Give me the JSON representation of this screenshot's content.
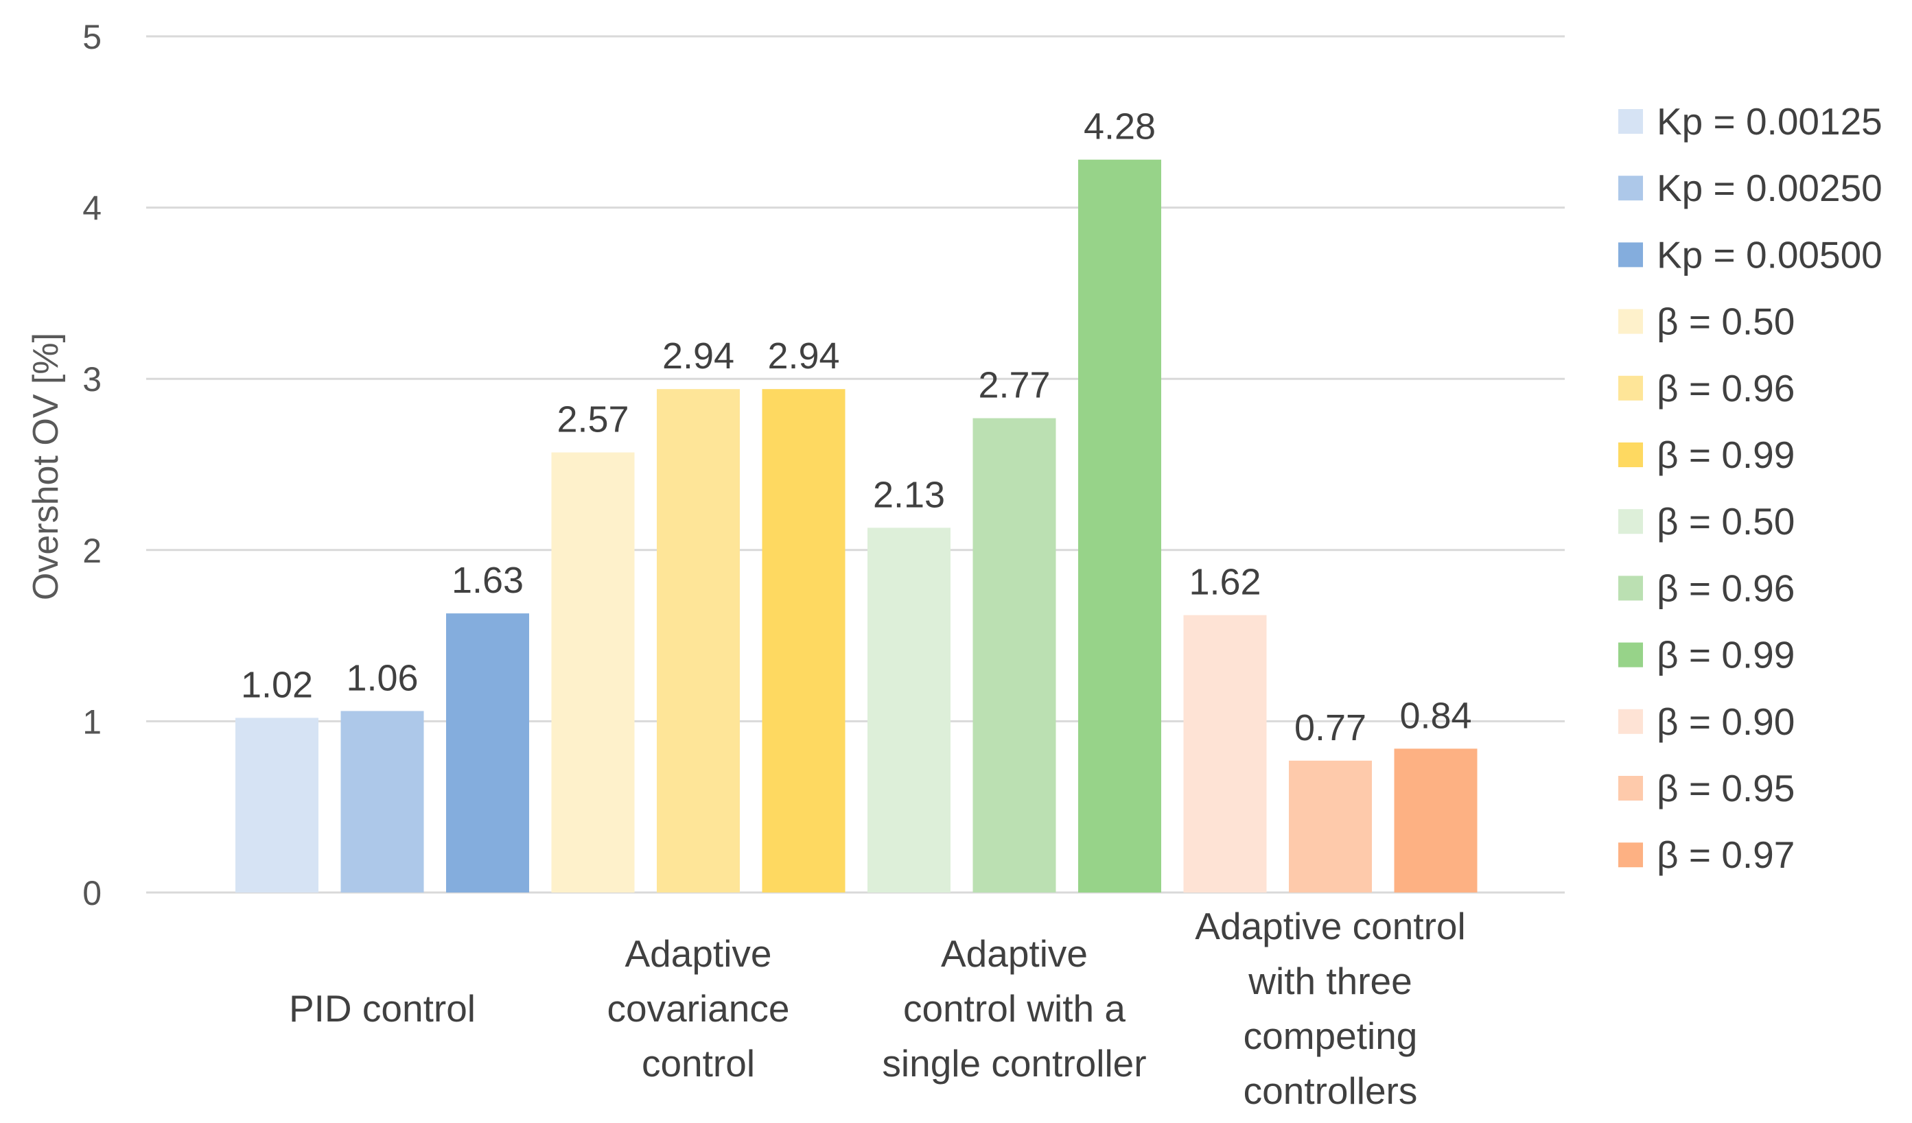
{
  "chart_data": {
    "type": "bar",
    "title": "",
    "ylabel": "Overshot OV [%]",
    "xlabel": "",
    "ylim": [
      0,
      5
    ],
    "yticks": [
      "0",
      "1",
      "2",
      "3",
      "4",
      "5"
    ],
    "grid": true,
    "legend_position": "right",
    "groups": [
      {
        "label": [
          "PID control"
        ],
        "bars": [
          {
            "series": "Kp = 0.00125",
            "value": 1.02,
            "label": "1.02",
            "color": "#d6e3f4"
          },
          {
            "series": "Kp = 0.00250",
            "value": 1.06,
            "label": "1.06",
            "color": "#adc8e9"
          },
          {
            "series": "Kp = 0.00500",
            "value": 1.63,
            "label": "1.63",
            "color": "#84addd"
          }
        ]
      },
      {
        "label": [
          "Adaptive",
          "covariance",
          "control"
        ],
        "bars": [
          {
            "series": "β = 0.50",
            "value": 2.57,
            "label": "2.57",
            "color": "#fef1cb"
          },
          {
            "series": "β = 0.96",
            "value": 2.94,
            "label": "2.94",
            "color": "#fee598"
          },
          {
            "series": "β = 0.99",
            "value": 2.94,
            "label": "2.94",
            "color": "#fed961"
          }
        ]
      },
      {
        "label": [
          "Adaptive",
          "control with a",
          "single controller"
        ],
        "bars": [
          {
            "series": "β = 0.50",
            "value": 2.13,
            "label": "2.13",
            "color": "#ddefd9"
          },
          {
            "series": "β = 0.96",
            "value": 2.77,
            "label": "2.77",
            "color": "#bbe0b2"
          },
          {
            "series": "β = 0.99",
            "value": 4.28,
            "label": "4.28",
            "color": "#97d389"
          }
        ]
      },
      {
        "label": [
          "Adaptive control",
          "with three",
          "competing",
          "controllers"
        ],
        "bars": [
          {
            "series": "β = 0.90",
            "value": 1.62,
            "label": "1.62",
            "color": "#fee3d5"
          },
          {
            "series": "β = 0.95",
            "value": 0.77,
            "label": "0.77",
            "color": "#fecaab"
          },
          {
            "series": "β = 0.97",
            "value": 0.84,
            "label": "0.84",
            "color": "#fdb183"
          }
        ]
      }
    ],
    "legend": [
      {
        "label": "Kp = 0.00125",
        "color": "#d6e3f4"
      },
      {
        "label": "Kp = 0.00250",
        "color": "#adc8e9"
      },
      {
        "label": "Kp = 0.00500",
        "color": "#84addd"
      },
      {
        "label": "β = 0.50",
        "color": "#fef1cb"
      },
      {
        "label": "β = 0.96",
        "color": "#fee598"
      },
      {
        "label": "β = 0.99",
        "color": "#fed961"
      },
      {
        "label": "β = 0.50",
        "color": "#ddefd9"
      },
      {
        "label": "β = 0.96",
        "color": "#bbe0b2"
      },
      {
        "label": "β = 0.99",
        "color": "#97d389"
      },
      {
        "label": "β = 0.90",
        "color": "#fee3d5"
      },
      {
        "label": "β = 0.95",
        "color": "#fecaab"
      },
      {
        "label": "β = 0.97",
        "color": "#fdb183"
      }
    ],
    "colors": {
      "gridline": "#d9d9d9",
      "axis_text": "#555555",
      "label_text": "#404040"
    }
  }
}
